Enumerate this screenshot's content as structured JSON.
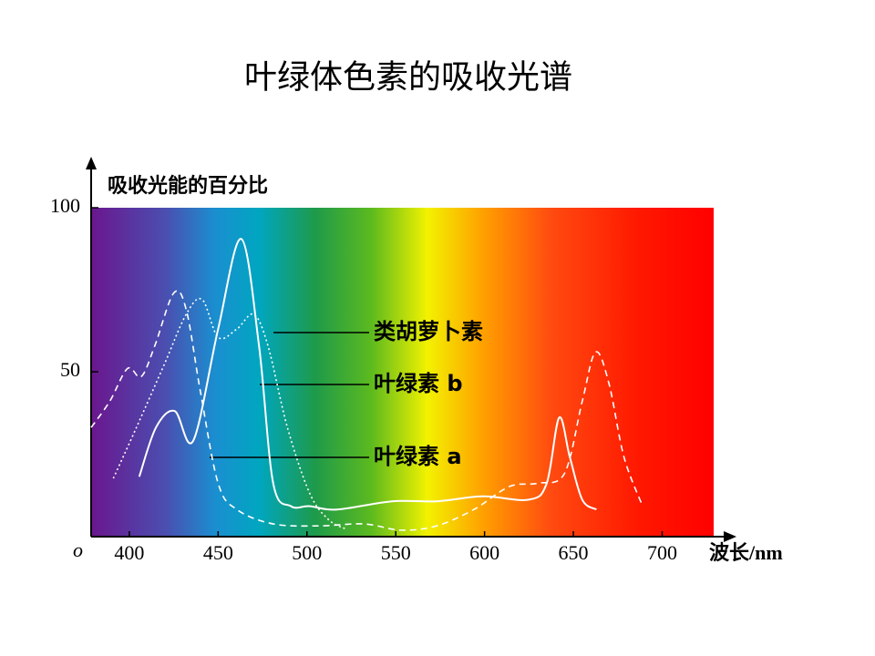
{
  "chart_data": {
    "type": "line",
    "title": "叶绿体色素的吸收光谱",
    "y_label": "吸收光能的百分比",
    "x_label": "波长/nm",
    "origin_label": "o",
    "xlim": [
      378.5,
      729
    ],
    "ylim": [
      0,
      100
    ],
    "xticks": [
      400,
      450,
      500,
      550,
      600,
      650,
      700
    ],
    "yticks": [
      50,
      100
    ],
    "grid": false,
    "series": [
      {
        "name": "类胡萝卜素",
        "color": "#ffffff",
        "style": "dotted",
        "x": [
          391,
          404,
          419.5,
          432,
          441,
          450,
          460.5,
          470,
          478,
          489,
          501.5,
          512,
          522
        ],
        "values": [
          17.5,
          33,
          52,
          67.5,
          72,
          60.5,
          63,
          67.5,
          58,
          33,
          13,
          5,
          2
        ]
      },
      {
        "name": "叶绿素 b",
        "color": "#ffffff",
        "style": "solid",
        "x": [
          405.6,
          415,
          425.6,
          436,
          450,
          463,
          473,
          481,
          491,
          501.5,
          517,
          548,
          573,
          599,
          625,
          635,
          642,
          648,
          655,
          663
        ],
        "values": [
          18,
          33,
          38,
          29,
          63,
          90.5,
          58,
          16,
          9,
          9,
          8,
          10.5,
          10.5,
          12,
          11,
          16,
          36,
          24,
          11,
          8
        ]
      },
      {
        "name": "叶绿素 a",
        "color": "#ffffff",
        "style": "dashed",
        "x": [
          378.5,
          389,
          399,
          406.7,
          414.4,
          425,
          432,
          440,
          450,
          460.5,
          481,
          506.7,
          532,
          553,
          573,
          594,
          614,
          630,
          645,
          655,
          662.5,
          670,
          678.5,
          689
        ],
        "values": [
          33,
          41,
          51,
          48.5,
          58,
          74,
          69,
          44,
          16,
          8,
          3.6,
          3,
          3.6,
          1.7,
          3,
          8,
          15,
          16,
          19,
          41,
          56,
          46.5,
          24,
          9
        ]
      }
    ]
  }
}
